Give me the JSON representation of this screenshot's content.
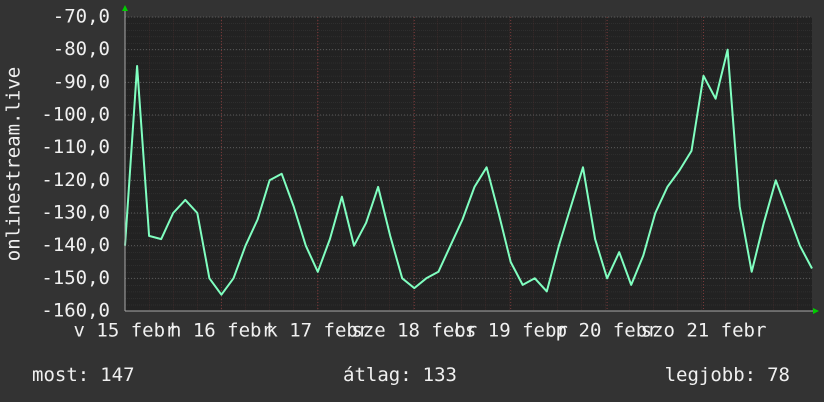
{
  "chart_data": {
    "type": "line",
    "y_label": "onlinestream.live",
    "values": [
      -140,
      -85,
      -137,
      -138,
      -130,
      -126,
      -130,
      -150,
      -155,
      -150,
      -140,
      -132,
      -120,
      -118,
      -128,
      -140,
      -148,
      -138,
      -125,
      -140,
      -133,
      -122,
      -137,
      -150,
      -153,
      -150,
      -148,
      -140,
      -132,
      -122,
      -116,
      -130,
      -145,
      -152,
      -150,
      -154,
      -140,
      -128,
      -116,
      -138,
      -150,
      -142,
      -152,
      -143,
      -130,
      -122,
      -117,
      -111,
      -88,
      -95,
      -80,
      -128,
      -148,
      -133,
      -120,
      -130,
      -140,
      -147
    ],
    "color": "#80ffc0",
    "xlim": [
      0,
      57
    ],
    "xticks": [
      {
        "value": 0,
        "label": "v 15 febr"
      },
      {
        "value": 8,
        "label": "h 16 febr"
      },
      {
        "value": 16,
        "label": "k 17 febr"
      },
      {
        "value": 24,
        "label": "sze 18 febr"
      },
      {
        "value": 32,
        "label": "cs 19 febr"
      },
      {
        "value": 40,
        "label": "p 20 febr"
      },
      {
        "value": 48,
        "label": "szo 21 febr"
      }
    ],
    "ylim": [
      -160,
      -70
    ],
    "yticks": [
      {
        "value": -70,
        "label": "-70,0"
      },
      {
        "value": -80,
        "label": "-80,0"
      },
      {
        "value": -90,
        "label": "-90,0"
      },
      {
        "value": -100,
        "label": "-100,0"
      },
      {
        "value": -110,
        "label": "-110,0"
      },
      {
        "value": -120,
        "label": "-120,0"
      },
      {
        "value": -130,
        "label": "-130,0"
      },
      {
        "value": -140,
        "label": "-140,0"
      },
      {
        "value": -150,
        "label": "-150,0"
      },
      {
        "value": -160,
        "label": "-160,0"
      }
    ],
    "grid": true,
    "footer": [
      {
        "label": "most:",
        "value": 147
      },
      {
        "label": "átlag:",
        "value": 133
      },
      {
        "label": "legjobb:",
        "value": 78
      }
    ]
  }
}
